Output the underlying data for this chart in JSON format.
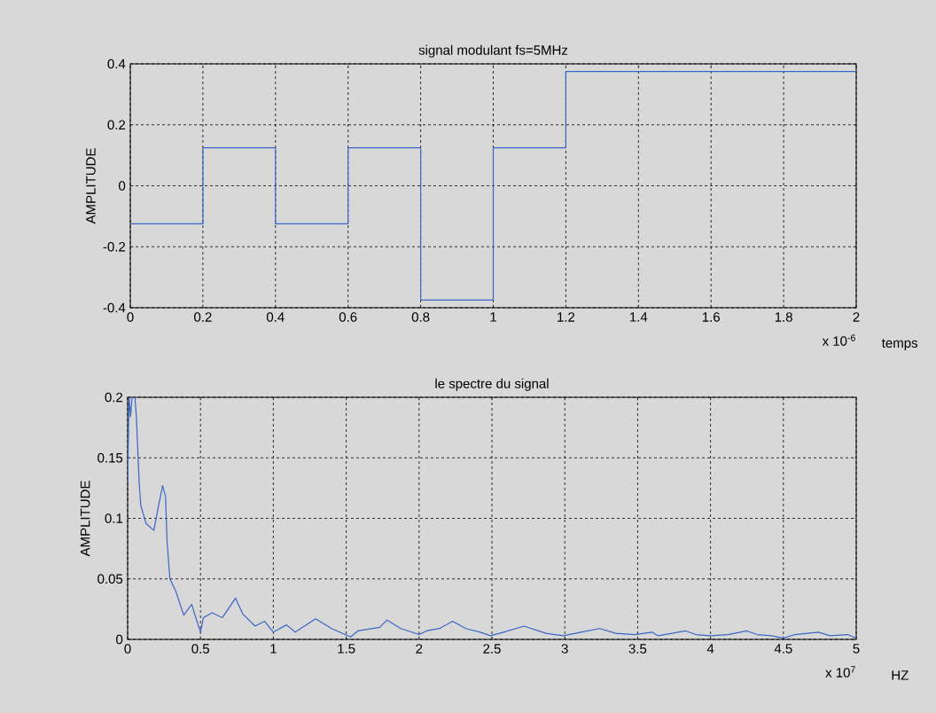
{
  "chart_data": [
    {
      "type": "step",
      "title": "signal modulant fs=5MHz",
      "xlabel": "temps",
      "ylabel": "AMPLITUDE",
      "annotations": [
        "x 10$^{-6}$"
      ],
      "x": [
        0,
        0.2,
        0.4,
        0.6,
        0.8,
        1,
        1.2,
        2
      ],
      "series": [
        {
          "color": "#3b66c6",
          "values": [
            -0.125,
            0.125,
            -0.125,
            0.125,
            -0.375,
            0.125,
            0.375,
            0.375
          ]
        }
      ],
      "xlim": [
        0,
        2
      ],
      "ylim": [
        -0.4,
        0.4
      ],
      "xticks": [
        0,
        0.2,
        0.4,
        0.6,
        0.8,
        1,
        1.2,
        1.4,
        1.6,
        1.8,
        2
      ],
      "yticks": [
        -0.4,
        -0.2,
        0,
        0.2,
        0.4
      ],
      "grid": true,
      "marker": "none",
      "line_style": "solid"
    },
    {
      "type": "line",
      "title": "le spectre du signal",
      "xlabel": "HZ",
      "ylabel": "AMPLITUDE",
      "annotations": [
        "x 10$^{7}$"
      ],
      "x": [
        0,
        0.01,
        0.02,
        0.03,
        0.05,
        0.06,
        0.07,
        0.08,
        0.09,
        0.125,
        0.18,
        0.21,
        0.24,
        0.26,
        0.27,
        0.29,
        0.33,
        0.385,
        0.44,
        0.46,
        0.5,
        0.52,
        0.58,
        0.65,
        0.74,
        0.79,
        0.875,
        0.94,
        1.0,
        1.09,
        1.15,
        1.29,
        1.4,
        1.53,
        1.58,
        1.73,
        1.78,
        1.875,
        2.0,
        2.05,
        2.14,
        2.23,
        2.32,
        2.42,
        2.49,
        2.58,
        2.72,
        2.87,
        2.99,
        3.11,
        3.24,
        3.35,
        3.48,
        3.6,
        3.64,
        3.83,
        3.9,
        4.0,
        4.12,
        4.25,
        4.32,
        4.42,
        4.5,
        4.58,
        4.74,
        4.82,
        4.94,
        5.0
      ],
      "series": [
        {
          "color": "#3b66c6",
          "values": [
            0.13,
            0.2,
            0.184,
            0.2,
            0.2,
            0.184,
            0.155,
            0.128,
            0.111,
            0.096,
            0.09,
            0.109,
            0.127,
            0.118,
            0.082,
            0.05,
            0.04,
            0.02,
            0.029,
            0.021,
            0.006,
            0.018,
            0.022,
            0.018,
            0.034,
            0.021,
            0.011,
            0.015,
            0.006,
            0.012,
            0.006,
            0.017,
            0.009,
            0.002,
            0.007,
            0.01,
            0.016,
            0.009,
            0.004,
            0.007,
            0.009,
            0.015,
            0.009,
            0.006,
            0.003,
            0.006,
            0.011,
            0.005,
            0.003,
            0.006,
            0.009,
            0.005,
            0.004,
            0.006,
            0.003,
            0.007,
            0.004,
            0.003,
            0.004,
            0.007,
            0.004,
            0.003,
            0.001,
            0.004,
            0.006,
            0.003,
            0.004,
            0.001
          ]
        }
      ],
      "xlim": [
        0,
        5
      ],
      "ylim": [
        0,
        0.2
      ],
      "xticks": [
        0,
        0.5,
        1,
        1.5,
        2,
        2.5,
        3,
        3.5,
        4,
        4.5,
        5
      ],
      "yticks": [
        0,
        0.05,
        0.1,
        0.15,
        0.2
      ],
      "grid": true,
      "marker": "none",
      "line_style": "solid"
    }
  ]
}
